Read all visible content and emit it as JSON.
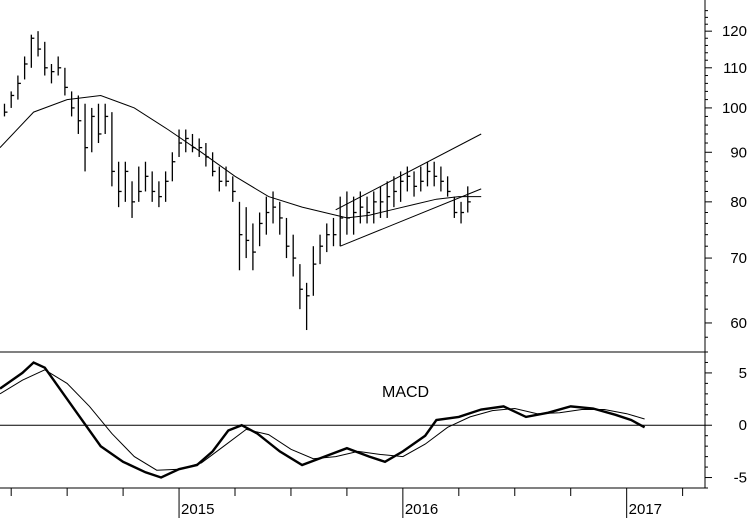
{
  "chart_data": [
    {
      "type": "line",
      "panel": "price",
      "y_scale": "log",
      "ylim": [
        56,
        128
      ],
      "xlim": [
        2014.2,
        2017.35
      ],
      "yticks": [
        60,
        70,
        80,
        90,
        100,
        110,
        120
      ],
      "ytick_labels": [
        "60",
        "70",
        "80",
        "90",
        "100",
        "110",
        "120"
      ],
      "series": [
        {
          "style": "bars",
          "points": [
            [
              2014.22,
              98,
              101,
              99
            ],
            [
              2014.25,
              100,
              104,
              103
            ],
            [
              2014.28,
              102,
              108,
              106
            ],
            [
              2014.31,
              107,
              113,
              111
            ],
            [
              2014.34,
              110,
              119,
              118
            ],
            [
              2014.37,
              113,
              120,
              115
            ],
            [
              2014.4,
              108,
              117,
              110
            ],
            [
              2014.43,
              106,
              111,
              109
            ],
            [
              2014.46,
              108,
              113,
              110
            ],
            [
              2014.49,
              103,
              110,
              105
            ],
            [
              2014.52,
              98,
              104,
              100
            ],
            [
              2014.55,
              94,
              103,
              97
            ],
            [
              2014.58,
              86,
              101,
              91
            ],
            [
              2014.61,
              90,
              100,
              98
            ],
            [
              2014.64,
              92,
              101,
              94
            ],
            [
              2014.67,
              94,
              101,
              98
            ],
            [
              2014.7,
              83,
              99,
              86
            ],
            [
              2014.73,
              79,
              88,
              82
            ],
            [
              2014.76,
              80,
              88,
              86
            ],
            [
              2014.79,
              77,
              84,
              80
            ],
            [
              2014.82,
              80,
              87,
              82
            ],
            [
              2014.85,
              82,
              88,
              85
            ],
            [
              2014.88,
              80,
              86,
              82
            ],
            [
              2014.91,
              79,
              84,
              81
            ],
            [
              2014.94,
              80,
              86,
              84
            ],
            [
              2014.97,
              84,
              90,
              88
            ],
            [
              2015.0,
              89,
              95,
              92
            ],
            [
              2015.03,
              90,
              95,
              93
            ],
            [
              2015.06,
              90,
              94,
              91
            ],
            [
              2015.09,
              89,
              93,
              91
            ],
            [
              2015.12,
              87,
              92,
              89
            ],
            [
              2015.15,
              85,
              90,
              86
            ],
            [
              2015.18,
              82,
              87,
              84
            ],
            [
              2015.21,
              83,
              87,
              84
            ],
            [
              2015.24,
              80,
              85,
              82
            ],
            [
              2015.27,
              68,
              80,
              74
            ],
            [
              2015.3,
              70,
              79,
              73
            ],
            [
              2015.33,
              68,
              76,
              71
            ],
            [
              2015.36,
              72,
              78,
              76
            ],
            [
              2015.39,
              74,
              81,
              78
            ],
            [
              2015.42,
              76,
              82,
              79
            ],
            [
              2015.45,
              74,
              80,
              77
            ],
            [
              2015.48,
              70,
              77,
              72
            ],
            [
              2015.51,
              67,
              74,
              70
            ],
            [
              2015.54,
              62,
              69,
              65
            ],
            [
              2015.57,
              59,
              66,
              64
            ],
            [
              2015.6,
              64,
              72,
              69
            ],
            [
              2015.63,
              69,
              74,
              72
            ],
            [
              2015.66,
              71,
              76,
              74
            ],
            [
              2015.69,
              72,
              77,
              74
            ],
            [
              2015.72,
              72,
              81,
              77
            ],
            [
              2015.75,
              74,
              82,
              77
            ],
            [
              2015.78,
              74,
              81,
              78
            ],
            [
              2015.81,
              76,
              82,
              79
            ],
            [
              2015.84,
              76,
              81,
              78
            ],
            [
              2015.87,
              76,
              82,
              80
            ],
            [
              2015.9,
              77,
              83,
              80
            ],
            [
              2015.93,
              77,
              84,
              81
            ],
            [
              2015.96,
              79,
              85,
              82
            ],
            [
              2015.99,
              80,
              86,
              84
            ],
            [
              2016.02,
              82,
              87,
              85
            ],
            [
              2016.05,
              81,
              86,
              83
            ],
            [
              2016.08,
              82,
              87,
              84
            ],
            [
              2016.11,
              83,
              88,
              86
            ],
            [
              2016.14,
              83,
              88,
              85
            ],
            [
              2016.17,
              82,
              87,
              84
            ],
            [
              2016.2,
              81,
              85,
              82
            ],
            [
              2016.23,
              77,
              81,
              78
            ],
            [
              2016.26,
              76,
              80,
              78
            ],
            [
              2016.29,
              78,
              83,
              80
            ]
          ]
        },
        {
          "style": "line",
          "points": [
            [
              2014.2,
              91
            ],
            [
              2014.35,
              99
            ],
            [
              2014.5,
              102
            ],
            [
              2014.65,
              103
            ],
            [
              2014.8,
              100
            ],
            [
              2014.95,
              95
            ],
            [
              2015.1,
              90
            ],
            [
              2015.25,
              85
            ],
            [
              2015.4,
              81
            ],
            [
              2015.55,
              79
            ],
            [
              2015.65,
              78
            ],
            [
              2015.75,
              77
            ],
            [
              2015.85,
              77.5
            ],
            [
              2015.95,
              78.5
            ],
            [
              2016.05,
              79.5
            ],
            [
              2016.15,
              80.5
            ],
            [
              2016.25,
              81
            ],
            [
              2016.35,
              81
            ]
          ]
        },
        {
          "style": "trendline",
          "points": [
            [
              2015.7,
              78.5
            ],
            [
              2016.35,
              94
            ]
          ]
        },
        {
          "style": "trendline",
          "points": [
            [
              2015.72,
              72
            ],
            [
              2016.35,
              82.5
            ]
          ]
        }
      ]
    },
    {
      "type": "line",
      "panel": "macd",
      "title": "MACD",
      "ylim": [
        -6,
        7
      ],
      "xlim": [
        2014.2,
        2017.35
      ],
      "yticks": [
        5,
        0,
        -5
      ],
      "ytick_labels": [
        "5",
        "0",
        "-5"
      ],
      "xticks": [
        2015,
        2016,
        2017
      ],
      "xtick_labels": [
        "2015",
        "2016",
        "2017"
      ],
      "series": [
        {
          "style": "thick",
          "points": [
            [
              2014.2,
              3.5
            ],
            [
              2014.3,
              5.0
            ],
            [
              2014.35,
              6.0
            ],
            [
              2014.4,
              5.5
            ],
            [
              2014.45,
              4.0
            ],
            [
              2014.55,
              1.0
            ],
            [
              2014.65,
              -2.0
            ],
            [
              2014.75,
              -3.5
            ],
            [
              2014.85,
              -4.5
            ],
            [
              2014.92,
              -5.0
            ],
            [
              2015.0,
              -4.2
            ],
            [
              2015.08,
              -3.8
            ],
            [
              2015.15,
              -2.5
            ],
            [
              2015.22,
              -0.5
            ],
            [
              2015.28,
              0.0
            ],
            [
              2015.35,
              -0.8
            ],
            [
              2015.45,
              -2.5
            ],
            [
              2015.55,
              -3.8
            ],
            [
              2015.65,
              -3.0
            ],
            [
              2015.75,
              -2.2
            ],
            [
              2015.85,
              -3.0
            ],
            [
              2015.92,
              -3.5
            ],
            [
              2016.0,
              -2.5
            ],
            [
              2016.1,
              -1.0
            ],
            [
              2016.15,
              0.5
            ],
            [
              2016.25,
              0.8
            ],
            [
              2016.35,
              1.5
            ],
            [
              2016.45,
              1.8
            ],
            [
              2016.55,
              0.8
            ],
            [
              2016.65,
              1.2
            ],
            [
              2016.75,
              1.8
            ],
            [
              2016.85,
              1.6
            ],
            [
              2016.95,
              1.0
            ],
            [
              2017.02,
              0.5
            ],
            [
              2017.08,
              -0.2
            ]
          ]
        },
        {
          "style": "thin",
          "points": [
            [
              2014.2,
              3.0
            ],
            [
              2014.3,
              4.3
            ],
            [
              2014.4,
              5.3
            ],
            [
              2014.5,
              4.0
            ],
            [
              2014.6,
              1.8
            ],
            [
              2014.7,
              -0.8
            ],
            [
              2014.8,
              -3.0
            ],
            [
              2014.9,
              -4.3
            ],
            [
              2015.0,
              -4.2
            ],
            [
              2015.1,
              -3.6
            ],
            [
              2015.2,
              -2.0
            ],
            [
              2015.3,
              -0.4
            ],
            [
              2015.4,
              -0.9
            ],
            [
              2015.5,
              -2.3
            ],
            [
              2015.6,
              -3.2
            ],
            [
              2015.7,
              -3.0
            ],
            [
              2015.8,
              -2.5
            ],
            [
              2015.9,
              -2.8
            ],
            [
              2016.0,
              -3.0
            ],
            [
              2016.1,
              -1.8
            ],
            [
              2016.2,
              -0.2
            ],
            [
              2016.3,
              0.8
            ],
            [
              2016.4,
              1.4
            ],
            [
              2016.5,
              1.6
            ],
            [
              2016.6,
              1.1
            ],
            [
              2016.7,
              1.2
            ],
            [
              2016.8,
              1.5
            ],
            [
              2016.9,
              1.5
            ],
            [
              2017.0,
              1.1
            ],
            [
              2017.08,
              0.6
            ]
          ]
        }
      ]
    }
  ]
}
